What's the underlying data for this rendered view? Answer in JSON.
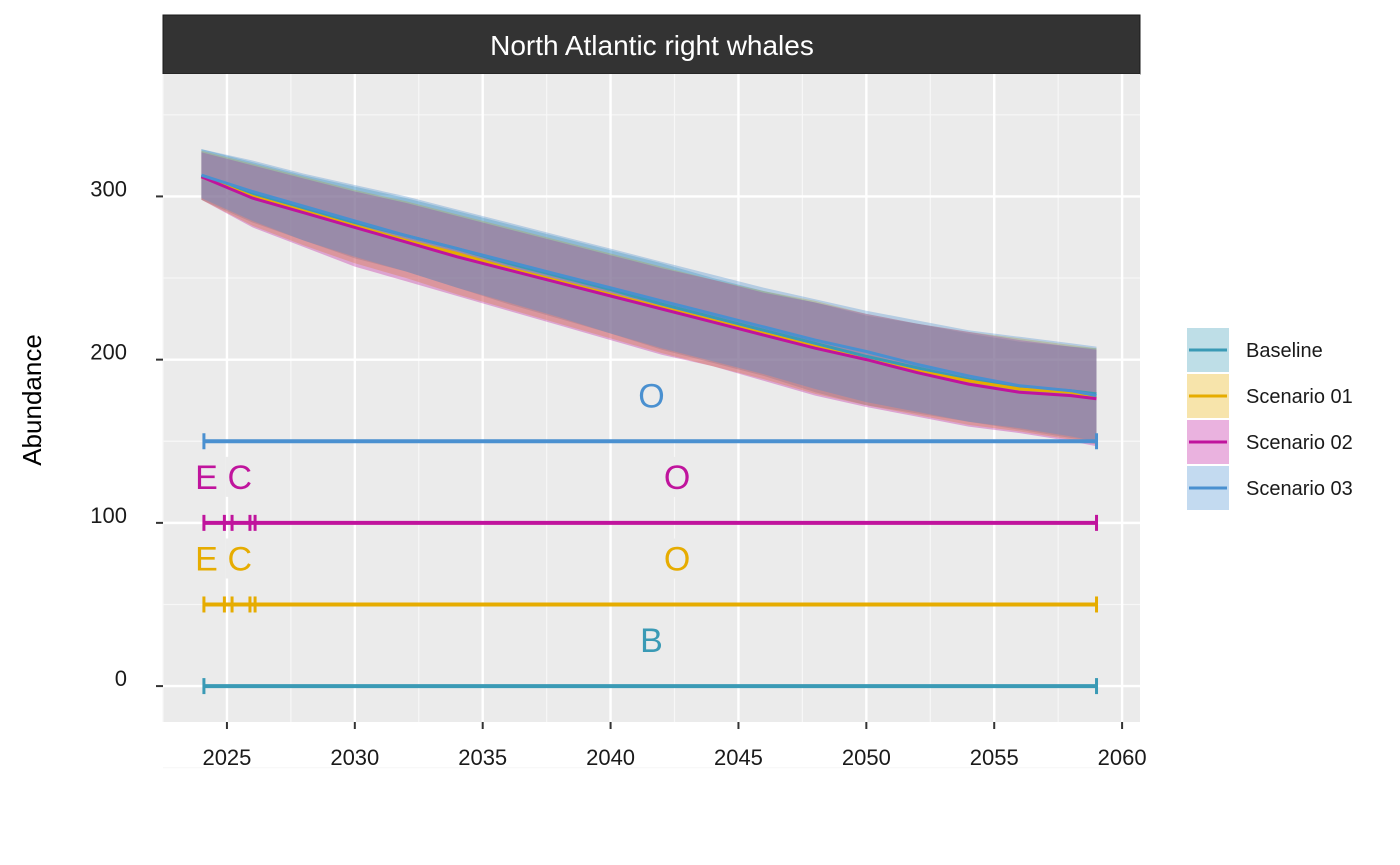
{
  "chart_data": {
    "type": "area",
    "panel_title": "North Atlantic right whales",
    "xlabel": "",
    "ylabel": "Abundance",
    "xlim": [
      2022.5,
      2060.7
    ],
    "ylim": [
      -22,
      375
    ],
    "x_ticks": [
      2025,
      2030,
      2035,
      2040,
      2045,
      2050,
      2055,
      2060
    ],
    "y_ticks": [
      0,
      100,
      200,
      300
    ],
    "grid": true,
    "legend_position": "right",
    "series": [
      {
        "name": "Baseline",
        "color": "#3a9ab5",
        "x": [
          2024,
          2026,
          2028,
          2030,
          2032,
          2034,
          2036,
          2038,
          2040,
          2042,
          2044,
          2046,
          2048,
          2050,
          2052,
          2054,
          2056,
          2058,
          2059
        ],
        "mean": [
          313,
          302,
          293,
          284,
          276,
          268,
          259,
          251,
          243,
          234,
          226,
          218,
          210,
          202,
          195,
          188,
          183,
          181,
          179
        ],
        "lower": [
          298,
          284,
          273,
          262,
          254,
          244,
          234,
          225,
          216,
          206,
          198,
          190,
          180,
          172,
          167,
          162,
          157,
          152,
          150
        ],
        "upper": [
          329,
          321,
          313,
          306,
          299,
          291,
          283,
          275,
          267,
          259,
          250,
          242,
          235,
          227,
          222,
          216,
          211,
          208,
          207
        ]
      },
      {
        "name": "Scenario 01",
        "color": "#e6ac00",
        "x": [
          2024,
          2026,
          2028,
          2030,
          2032,
          2034,
          2036,
          2038,
          2040,
          2042,
          2044,
          2046,
          2048,
          2050,
          2052,
          2054,
          2056,
          2058,
          2059
        ],
        "mean": [
          312,
          300,
          291,
          282,
          273,
          265,
          256,
          248,
          240,
          232,
          224,
          216,
          208,
          200,
          193,
          187,
          182,
          180,
          177
        ],
        "lower": [
          298,
          282,
          270,
          259,
          250,
          240,
          231,
          222,
          213,
          204,
          196,
          188,
          179,
          172,
          166,
          160,
          156,
          151,
          148
        ],
        "upper": [
          328,
          320,
          312,
          304,
          297,
          289,
          281,
          273,
          265,
          257,
          249,
          242,
          236,
          228,
          222,
          217,
          213,
          209,
          207
        ]
      },
      {
        "name": "Scenario 02",
        "color": "#c0149d",
        "x": [
          2024,
          2026,
          2028,
          2030,
          2032,
          2034,
          2036,
          2038,
          2040,
          2042,
          2044,
          2046,
          2048,
          2050,
          2052,
          2054,
          2056,
          2058,
          2059
        ],
        "mean": [
          312,
          299,
          290,
          281,
          272,
          263,
          255,
          247,
          239,
          231,
          223,
          215,
          207,
          200,
          192,
          185,
          180,
          178,
          176
        ],
        "lower": [
          298,
          281,
          269,
          257,
          248,
          239,
          230,
          221,
          212,
          203,
          196,
          187,
          178,
          171,
          165,
          159,
          155,
          150,
          147
        ],
        "upper": [
          327,
          319,
          311,
          303,
          296,
          288,
          280,
          272,
          264,
          256,
          249,
          241,
          235,
          228,
          222,
          217,
          212,
          208,
          206
        ]
      },
      {
        "name": "Scenario 03",
        "color": "#4a90d0",
        "x": [
          2024,
          2026,
          2028,
          2030,
          2032,
          2034,
          2036,
          2038,
          2040,
          2042,
          2044,
          2046,
          2048,
          2050,
          2052,
          2054,
          2056,
          2058,
          2059
        ],
        "mean": [
          313,
          303,
          294,
          285,
          276,
          268,
          260,
          252,
          244,
          236,
          228,
          220,
          212,
          205,
          197,
          190,
          184,
          181,
          178
        ],
        "lower": [
          299,
          285,
          273,
          263,
          254,
          244,
          235,
          226,
          216,
          207,
          199,
          191,
          182,
          174,
          168,
          162,
          158,
          153,
          150
        ],
        "upper": [
          329,
          322,
          314,
          307,
          300,
          292,
          284,
          276,
          268,
          260,
          252,
          244,
          237,
          230,
          224,
          218,
          214,
          210,
          208
        ]
      }
    ],
    "timelines": [
      {
        "series": "Baseline",
        "color": "#3a9ab5",
        "y": 0,
        "x_start": 2024.1,
        "x_end": 2059,
        "ticks": [
          2024.1,
          2059
        ],
        "labels": [
          {
            "text": "B",
            "x": 2041.6
          }
        ]
      },
      {
        "series": "Scenario 01",
        "color": "#e6ac00",
        "y": 50,
        "x_start": 2024.1,
        "x_end": 2059,
        "ticks": [
          2024.1,
          2024.9,
          2025.2,
          2025.9,
          2026.1,
          2059
        ],
        "labels": [
          {
            "text": "E",
            "x": 2024.2
          },
          {
            "text": "C",
            "x": 2025.5
          },
          {
            "text": "O",
            "x": 2042.6
          }
        ]
      },
      {
        "series": "Scenario 02",
        "color": "#c0149d",
        "y": 100,
        "x_start": 2024.1,
        "x_end": 2059,
        "ticks": [
          2024.1,
          2024.9,
          2025.2,
          2025.9,
          2026.1,
          2059
        ],
        "labels": [
          {
            "text": "E",
            "x": 2024.2
          },
          {
            "text": "C",
            "x": 2025.5
          },
          {
            "text": "O",
            "x": 2042.6
          }
        ]
      },
      {
        "series": "Scenario 03",
        "color": "#4a90d0",
        "y": 150,
        "x_start": 2024.1,
        "x_end": 2059,
        "ticks": [
          2024.1,
          2059
        ],
        "labels": [
          {
            "text": "O",
            "x": 2041.6
          }
        ]
      }
    ]
  }
}
